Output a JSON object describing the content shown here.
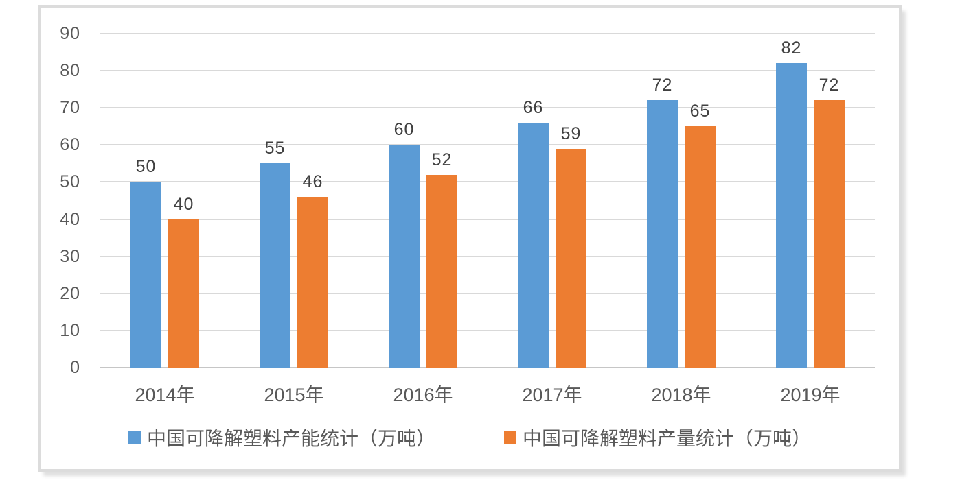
{
  "chart_data": {
    "type": "bar",
    "title": "",
    "categories": [
      "2014年",
      "2015年",
      "2016年",
      "2017年",
      "2018年",
      "2019年"
    ],
    "series": [
      {
        "name": "中国可降解塑料产能统计（万吨）",
        "color": "#5B9BD5",
        "values": [
          50,
          55,
          60,
          66,
          72,
          82
        ]
      },
      {
        "name": "中国可降解塑料产量统计（万吨）",
        "color": "#ED7D31",
        "values": [
          40,
          46,
          52,
          59,
          65,
          72
        ]
      }
    ],
    "xlabel": "",
    "ylabel": "",
    "ylim": [
      0,
      90
    ],
    "yticks": [
      0,
      10,
      20,
      30,
      40,
      50,
      60,
      70,
      80,
      90
    ],
    "grid": "horizontal",
    "legend_position": "bottom",
    "data_labels": "above-bars"
  },
  "colors": {
    "series_capacity_blue": "#5B9BD5",
    "series_output_orange": "#ED7D31",
    "gridline": "#D9D9D9",
    "axis_baseline": "#C6C6C6",
    "tick_label_text": "#595959",
    "data_label_text": "#404040",
    "legend_text": "#595959",
    "frame_border": "#DCDCDC",
    "background": "#FFFFFF"
  }
}
